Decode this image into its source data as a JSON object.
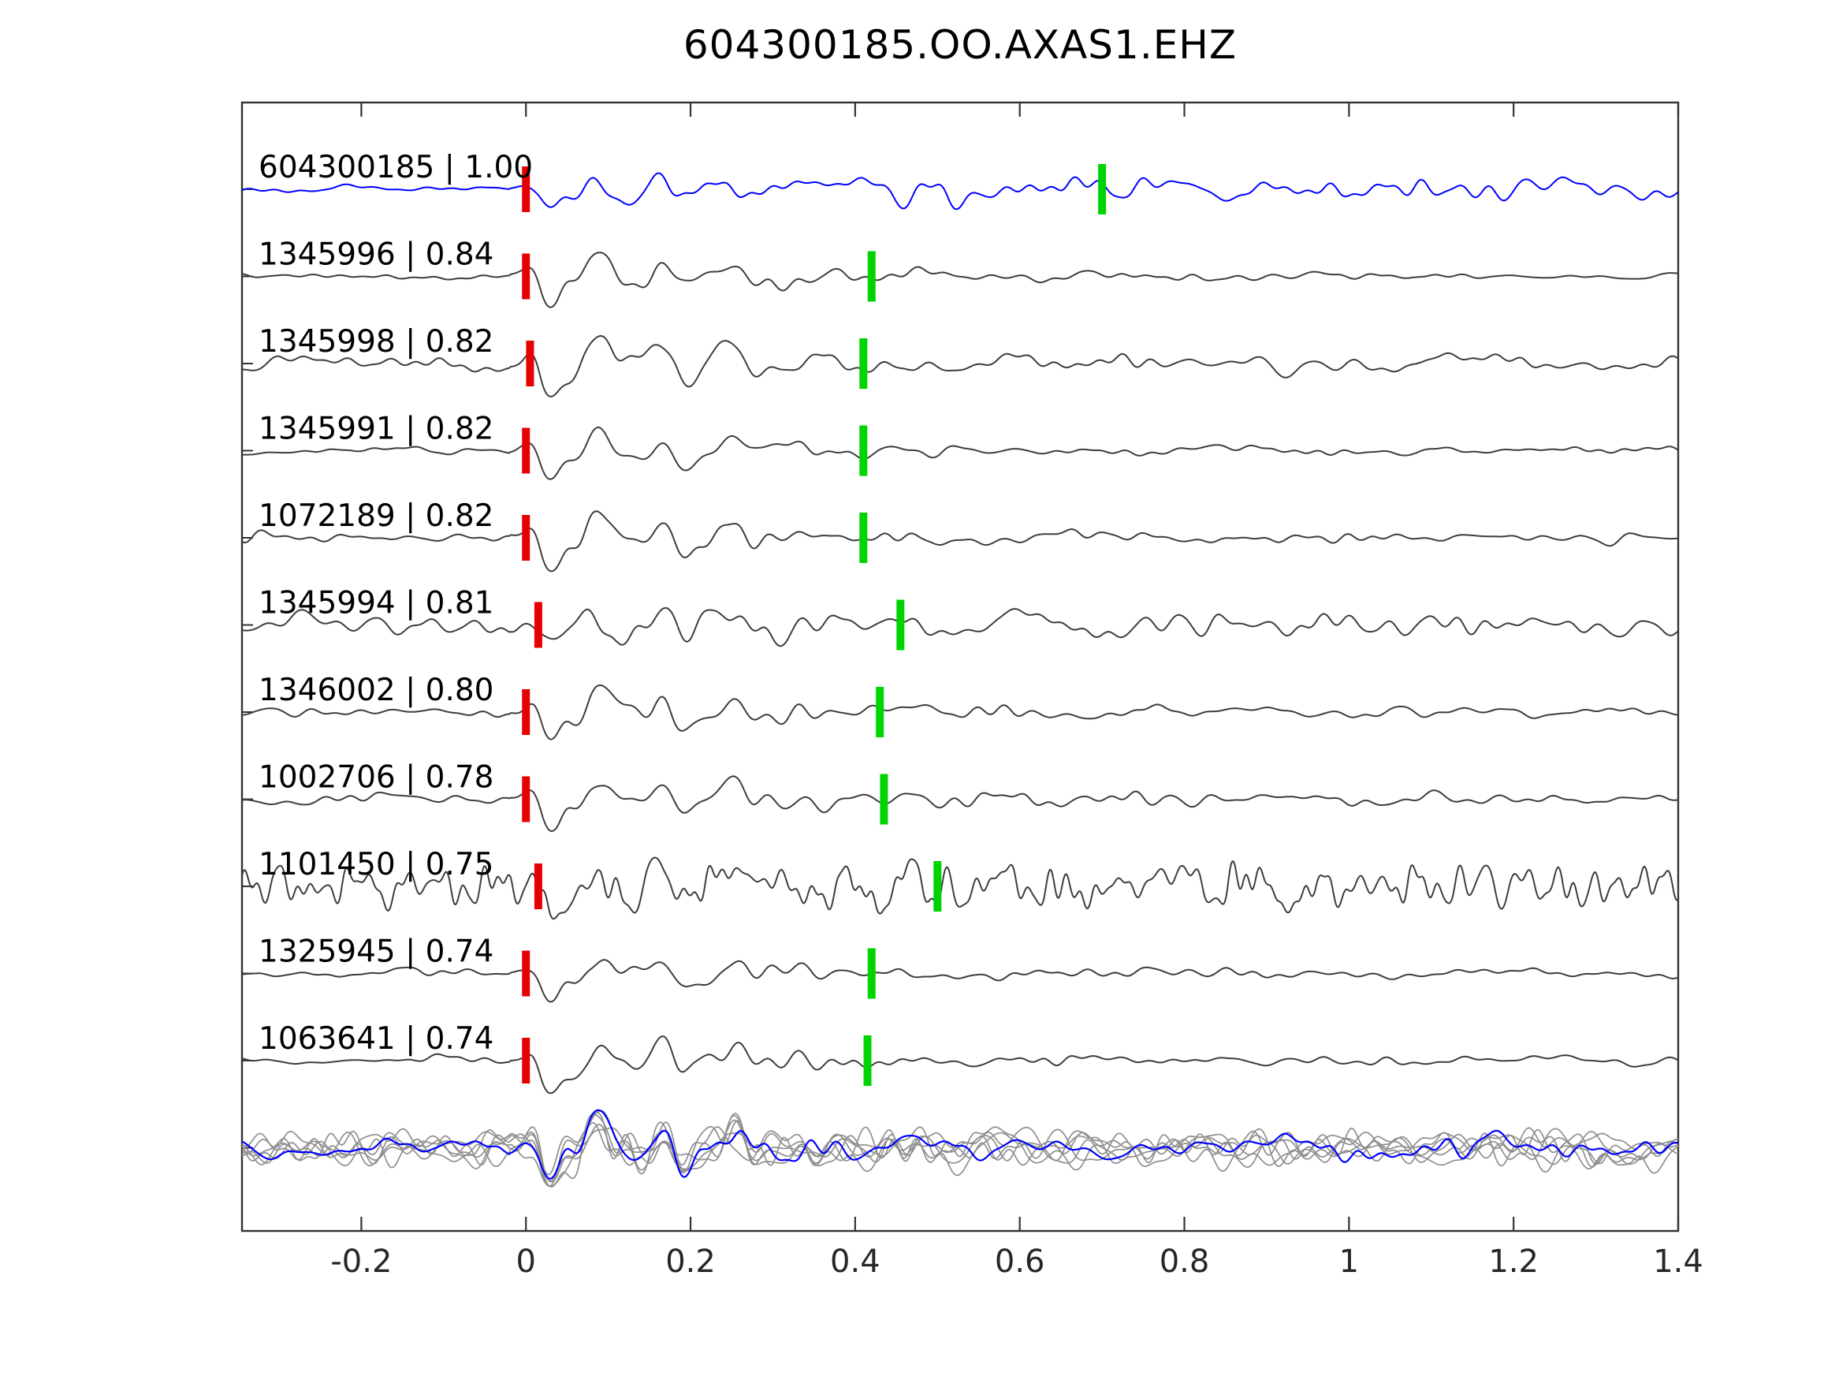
{
  "title": "604300185.OO.AXAS1.EHZ",
  "chart_data": {
    "type": "line",
    "title": "604300185.OO.AXAS1.EHZ",
    "xlabel": "",
    "ylabel": "",
    "xlim": [
      -0.345,
      1.4
    ],
    "grid": false,
    "legend": null,
    "xticks": [
      {
        "value": -0.2,
        "label": "-0.2"
      },
      {
        "value": 0,
        "label": "0"
      },
      {
        "value": 0.2,
        "label": "0.2"
      },
      {
        "value": 0.4,
        "label": "0.4"
      },
      {
        "value": 0.6,
        "label": "0.6"
      },
      {
        "value": 0.8,
        "label": "0.8"
      },
      {
        "value": 1,
        "label": "1"
      },
      {
        "value": 1.2,
        "label": "1.2"
      },
      {
        "value": 1.4,
        "label": "1.4"
      }
    ],
    "colors": {
      "template": "#0000ff",
      "detection": "#3d3d3d",
      "pick_red": "#e60000",
      "pick_green": "#00d400",
      "stack_gray": "#8f8f8f",
      "axis": "#333333",
      "text": "#000000"
    },
    "traces": [
      {
        "id": "604300185",
        "correlation": 1.0,
        "label": "604300185 | 1.00",
        "role": "template",
        "red_pick_x": 0.0,
        "green_pick_x": 0.7,
        "noise": 0.12,
        "burst": 0.55,
        "coda": 0.55,
        "tail": 2.8,
        "noisy": false
      },
      {
        "id": "1345996",
        "correlation": 0.84,
        "label": "1345996 | 0.84",
        "role": "detection",
        "red_pick_x": 0.0,
        "green_pick_x": 0.42,
        "noise": 0.1,
        "burst": 1.0,
        "coda": 0.3,
        "tail": 0.7,
        "noisy": false
      },
      {
        "id": "1345998",
        "correlation": 0.82,
        "label": "1345998 | 0.82",
        "role": "detection",
        "red_pick_x": 0.005,
        "green_pick_x": 0.41,
        "noise": 0.22,
        "burst": 0.95,
        "coda": 0.38,
        "tail": 0.8,
        "noisy": false
      },
      {
        "id": "1345991",
        "correlation": 0.82,
        "label": "1345991 | 0.82",
        "role": "detection",
        "red_pick_x": 0.0,
        "green_pick_x": 0.41,
        "noise": 0.1,
        "burst": 1.0,
        "coda": 0.3,
        "tail": 0.7,
        "noisy": false
      },
      {
        "id": "1072189",
        "correlation": 0.82,
        "label": "1072189 | 0.82",
        "role": "detection",
        "red_pick_x": 0.0,
        "green_pick_x": 0.41,
        "noise": 0.13,
        "burst": 1.05,
        "coda": 0.32,
        "tail": 0.7,
        "noisy": false
      },
      {
        "id": "1345994",
        "correlation": 0.81,
        "label": "1345994 | 0.81",
        "role": "detection",
        "red_pick_x": 0.015,
        "green_pick_x": 0.455,
        "noise": 0.3,
        "burst": 0.72,
        "coda": 0.5,
        "tail": 1.0,
        "noisy": false
      },
      {
        "id": "1346002",
        "correlation": 0.8,
        "label": "1346002 | 0.80",
        "role": "detection",
        "red_pick_x": 0.0,
        "green_pick_x": 0.43,
        "noise": 0.13,
        "burst": 0.9,
        "coda": 0.32,
        "tail": 0.8,
        "noisy": false
      },
      {
        "id": "1002706",
        "correlation": 0.78,
        "label": "1002706 | 0.78",
        "role": "detection",
        "red_pick_x": 0.0,
        "green_pick_x": 0.435,
        "noise": 0.15,
        "burst": 0.85,
        "coda": 0.36,
        "tail": 0.8,
        "noisy": false
      },
      {
        "id": "1101450",
        "correlation": 0.75,
        "label": "1101450 | 0.75",
        "role": "detection",
        "red_pick_x": 0.015,
        "green_pick_x": 0.5,
        "noise": 0.65,
        "burst": 0.85,
        "coda": 0.6,
        "tail": 1.2,
        "noisy": true
      },
      {
        "id": "1325945",
        "correlation": 0.74,
        "label": "1325945 | 0.74",
        "role": "detection",
        "red_pick_x": 0.0,
        "green_pick_x": 0.42,
        "noise": 0.12,
        "burst": 0.8,
        "coda": 0.3,
        "tail": 0.7,
        "noisy": false
      },
      {
        "id": "1063641",
        "correlation": 0.74,
        "label": "1063641 | 0.74",
        "role": "detection",
        "red_pick_x": 0.0,
        "green_pick_x": 0.415,
        "noise": 0.1,
        "burst": 1.15,
        "coda": 0.36,
        "tail": 0.8,
        "noisy": false
      }
    ],
    "stack": {
      "description": "overlay of aligned detection waveforms (gray) with template waveform (blue)",
      "gray_count": 6,
      "gray": {
        "noise": 0.5,
        "burst_base": 1.0,
        "burst_step": 0.06,
        "coda": 0.55,
        "tail": 0.8
      },
      "blue": {
        "noise": 0.3,
        "burst": 1.25,
        "coda": 0.5,
        "tail": 0.8
      }
    }
  }
}
